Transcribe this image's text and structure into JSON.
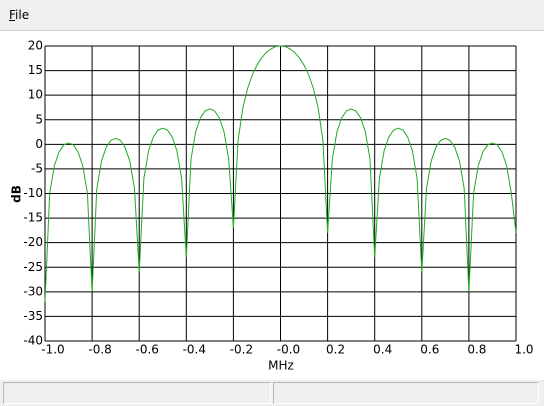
{
  "menu": [
    "File"
  ],
  "chart_data": {
    "type": "line",
    "xlabel": "MHz",
    "ylabel": "dB",
    "xlim": [
      -1.0,
      1.0
    ],
    "xticks": [
      {
        "value": -1.0,
        "label": "-1.0"
      },
      -0.8,
      -0.6,
      -0.4,
      -0.2,
      {
        "value": 0,
        "label": "-0.0"
      },
      0.2,
      0.4,
      0.6,
      0.8,
      {
        "value": 1.0,
        "label": "1.0"
      }
    ],
    "ylim": [
      -40,
      20
    ],
    "yticks": [
      -40,
      -35,
      -30,
      -25,
      -20,
      -15,
      -10,
      -5,
      0,
      5,
      10,
      15,
      20
    ],
    "grid": true,
    "x": [
      -1.0,
      -0.98,
      -0.96,
      -0.94,
      -0.92,
      -0.9,
      -0.88,
      -0.86,
      -0.84,
      -0.82,
      -0.8,
      -0.78,
      -0.76,
      -0.74,
      -0.72,
      -0.7,
      -0.68,
      -0.66,
      -0.64,
      -0.62,
      -0.6,
      -0.58,
      -0.56,
      -0.54,
      -0.52,
      -0.5,
      -0.48,
      -0.46,
      -0.44,
      -0.42,
      -0.4,
      -0.38,
      -0.36,
      -0.34,
      -0.32,
      -0.3,
      -0.28,
      -0.26,
      -0.24,
      -0.22,
      -0.2,
      -0.18,
      -0.16,
      -0.14,
      -0.12,
      -0.1,
      -0.08,
      -0.06,
      -0.04,
      -0.02,
      0,
      0.02,
      0.04,
      0.06,
      0.08,
      0.1,
      0.12,
      0.14,
      0.16,
      0.18,
      0.2,
      0.22,
      0.24,
      0.26,
      0.28,
      0.3,
      0.32,
      0.34,
      0.36,
      0.38,
      0.4,
      0.42,
      0.44,
      0.46,
      0.48,
      0.5,
      0.52,
      0.54,
      0.56,
      0.58,
      0.6,
      0.62,
      0.64,
      0.66,
      0.68,
      0.7,
      0.72,
      0.74,
      0.76,
      0.78,
      0.8,
      0.82,
      0.84,
      0.86,
      0.88,
      0.9,
      0.92,
      0.94,
      0.96,
      0.98,
      1.0
    ],
    "series": [
      {
        "color": "#22aa22",
        "values": [
          -32,
          -9.9,
          -4.3,
          -1.5,
          -0.1,
          0.3,
          -0.1,
          -1.5,
          -4.3,
          -9.9,
          -30,
          -9.0,
          -3.4,
          -0.6,
          0.8,
          1.2,
          0.8,
          -0.6,
          -3.4,
          -9.0,
          -26,
          -6.9,
          -1.3,
          1.5,
          2.9,
          3.3,
          2.9,
          1.5,
          -1.3,
          -6.9,
          -23,
          -3.0,
          2.6,
          5.4,
          6.8,
          7.2,
          6.8,
          5.4,
          2.6,
          -3.0,
          -17,
          0.8,
          7.4,
          11.3,
          14.1,
          16.1,
          17.6,
          18.7,
          19.4,
          19.9,
          20,
          19.9,
          19.4,
          18.7,
          17.6,
          16.1,
          14.1,
          11.3,
          7.4,
          0.8,
          -18,
          -3.0,
          2.6,
          5.4,
          6.8,
          7.2,
          6.8,
          5.4,
          2.6,
          -3.0,
          -23,
          -6.9,
          -1.3,
          1.5,
          2.9,
          3.3,
          2.9,
          1.5,
          -1.3,
          -6.9,
          -26,
          -9.0,
          -3.4,
          -0.6,
          0.8,
          1.2,
          0.8,
          -0.6,
          -3.4,
          -9.0,
          -30,
          -9.9,
          -4.3,
          -1.5,
          -0.1,
          0.3,
          -0.1,
          -1.5,
          -4.3,
          -9.9,
          -18
        ]
      }
    ]
  }
}
